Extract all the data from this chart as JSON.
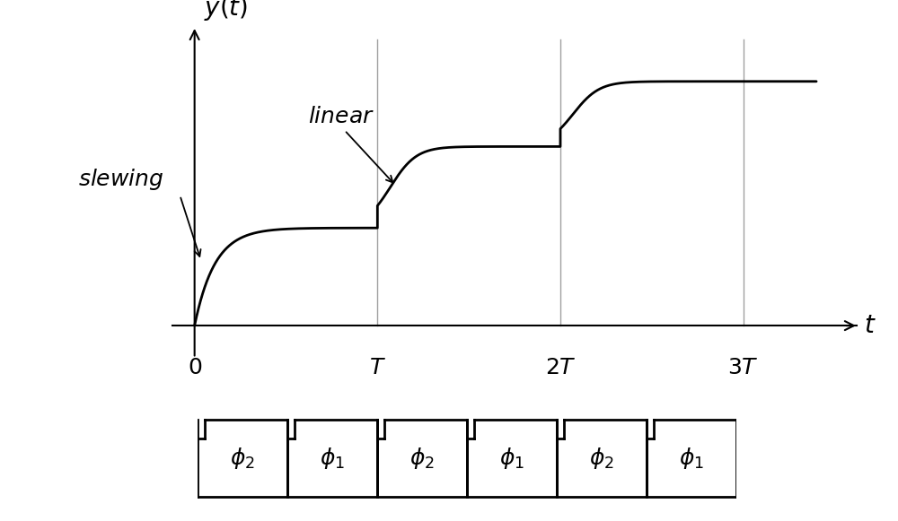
{
  "bg_color": "#ffffff",
  "curve_color": "#000000",
  "vline_color": "#888888",
  "figsize": [
    10,
    5.81
  ],
  "dpi": 100,
  "segment_levels": [
    0.3,
    0.55,
    0.75
  ],
  "jump_steepness": 14,
  "initial_slew_steepness": 9,
  "phi_labels": [
    "\\phi_2",
    "\\phi_1",
    "\\phi_2",
    "\\phi_1",
    "\\phi_2",
    "\\phi_1"
  ],
  "tick_fontsize": 18,
  "label_fontsize": 20,
  "annot_fontsize": 18,
  "phi_fontsize": 18
}
